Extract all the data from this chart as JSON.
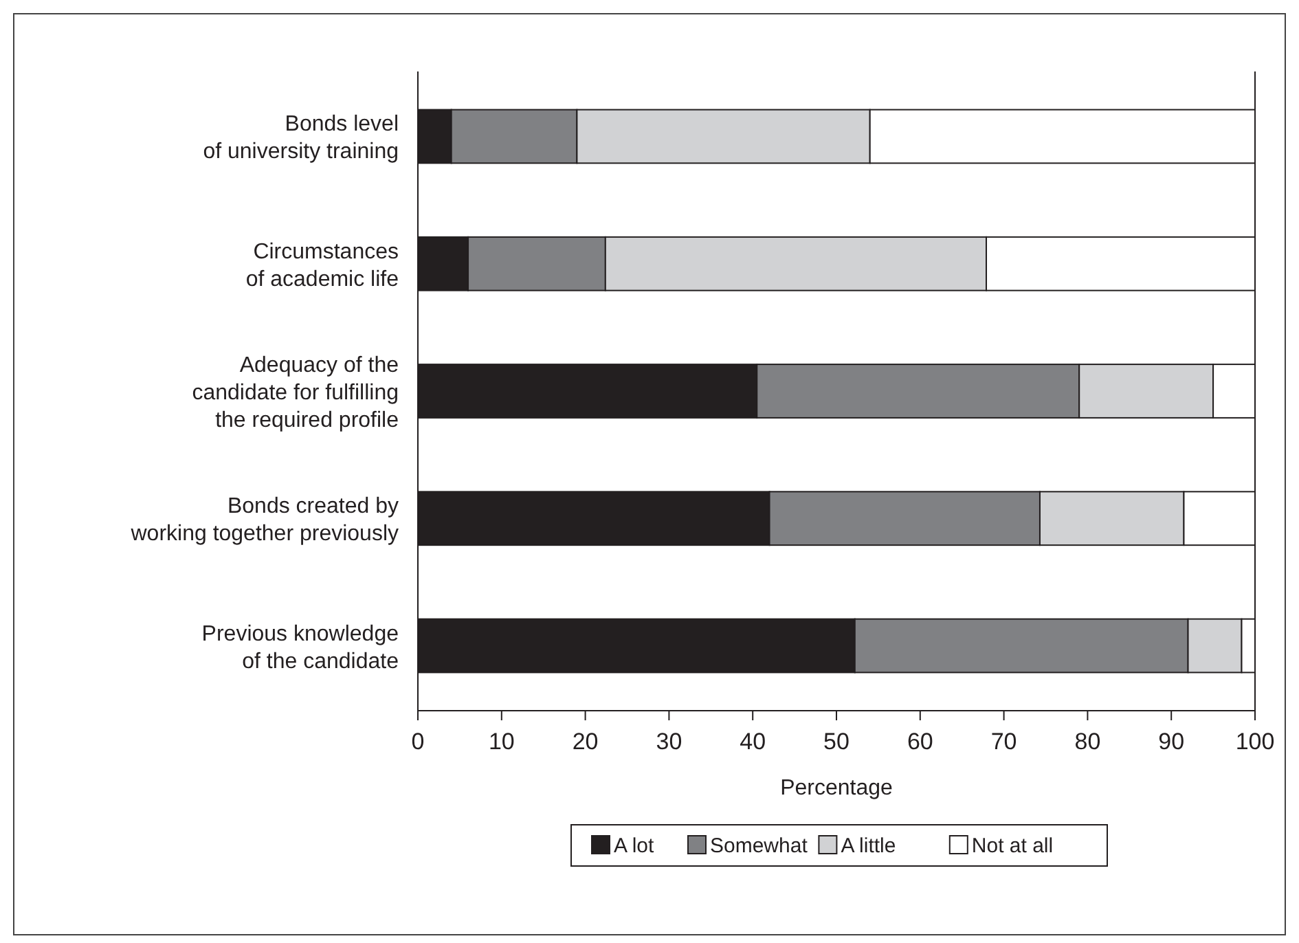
{
  "chart_data": {
    "type": "bar",
    "orientation": "horizontal",
    "stacked": true,
    "xlabel": "Percentage",
    "categories": [
      "Bonds level\nof university training",
      "Circumstances\nof academic life",
      "Adequacy of the\ncandidate for fulfilling\nthe required profile",
      "Bonds created by\nworking together previously",
      "Previous knowledge\nof the candidate"
    ],
    "series": [
      {
        "name": "A lot",
        "color": "#231f20",
        "values": [
          4,
          6,
          40.5,
          42,
          52.2
        ]
      },
      {
        "name": "Somewhat",
        "color": "#808184",
        "values": [
          15,
          16.4,
          38.5,
          32.3,
          39.8
        ]
      },
      {
        "name": "A little",
        "color": "#d1d2d4",
        "values": [
          35,
          45.5,
          16,
          17.2,
          6.4
        ]
      },
      {
        "name": "Not at all",
        "color": "#ffffff",
        "values": [
          46,
          32.1,
          5,
          8.5,
          1.6
        ]
      }
    ],
    "xlim": [
      0,
      100
    ],
    "xticks": [
      0,
      10,
      20,
      30,
      40,
      50,
      60,
      70,
      80,
      90,
      100
    ],
    "grid": false,
    "legend": "bottom"
  }
}
